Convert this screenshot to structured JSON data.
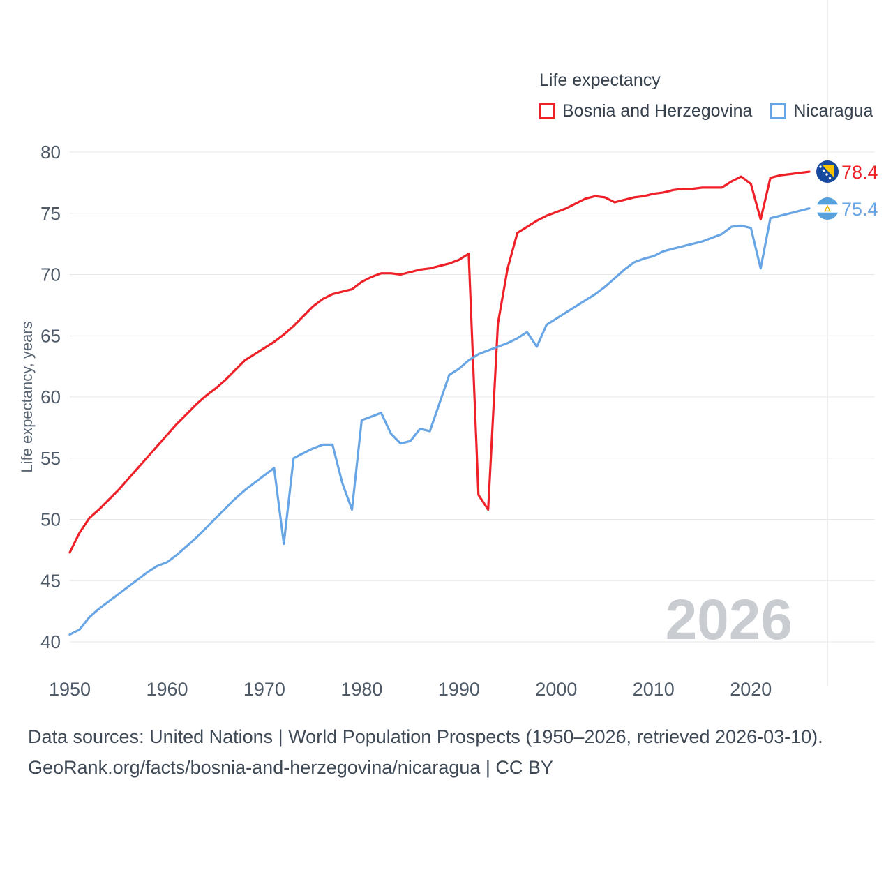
{
  "legend": {
    "title": "Life expectancy",
    "series": [
      {
        "label": "Bosnia and Herzegovina"
      },
      {
        "label": "Nicaragua"
      }
    ]
  },
  "chart_data": {
    "type": "line",
    "title": "Life expectancy",
    "ylabel": "Life expectancy, years",
    "xlim": [
      1950,
      2026
    ],
    "ylim": [
      40,
      80
    ],
    "x_start": 1950,
    "x_ticks": [
      1950,
      1960,
      1970,
      1980,
      1990,
      2000,
      2010,
      2020
    ],
    "y_ticks": [
      40,
      45,
      50,
      55,
      60,
      65,
      70,
      75,
      80
    ],
    "grid_color": "#e7e7e7",
    "watermark": "2026",
    "watermark_color": "#c9cdd2",
    "series": [
      {
        "name": "Bosnia and Herzegovina",
        "slug": "bosnia-and-herzegovina",
        "color": "#ee2128",
        "end_label": "78.4",
        "values": [
          47.3,
          48.9,
          50.1,
          50.8,
          51.6,
          52.4,
          53.3,
          54.2,
          55.1,
          56.0,
          56.9,
          57.8,
          58.6,
          59.4,
          60.1,
          60.7,
          61.4,
          62.2,
          63.0,
          63.5,
          64.0,
          64.5,
          65.1,
          65.8,
          66.6,
          67.4,
          68.0,
          68.4,
          68.6,
          68.8,
          69.4,
          69.8,
          70.1,
          70.1,
          70.0,
          70.2,
          70.4,
          70.5,
          70.7,
          70.9,
          71.2,
          71.7,
          52.0,
          50.8,
          66.0,
          70.5,
          73.4,
          73.9,
          74.4,
          74.8,
          75.1,
          75.4,
          75.8,
          76.2,
          76.4,
          76.3,
          75.9,
          76.1,
          76.3,
          76.4,
          76.6,
          76.7,
          76.9,
          77.0,
          77.0,
          77.1,
          77.1,
          77.1,
          77.6,
          78.0,
          77.4,
          74.5,
          77.9,
          78.1,
          78.2,
          78.3,
          78.4
        ]
      },
      {
        "name": "Nicaragua",
        "slug": "nicaragua",
        "color": "#67a5e5",
        "end_label": "75.4",
        "values": [
          40.6,
          41.0,
          42.0,
          42.7,
          43.3,
          43.9,
          44.5,
          45.1,
          45.7,
          46.2,
          46.5,
          47.1,
          47.8,
          48.5,
          49.3,
          50.1,
          50.9,
          51.7,
          52.4,
          53.0,
          53.6,
          54.2,
          48.0,
          55.0,
          55.4,
          55.8,
          56.1,
          56.1,
          53.0,
          50.8,
          58.1,
          58.4,
          58.7,
          57.0,
          56.2,
          56.4,
          57.4,
          57.2,
          59.5,
          61.8,
          62.3,
          63.0,
          63.5,
          63.8,
          64.1,
          64.4,
          64.8,
          65.3,
          64.1,
          65.9,
          66.4,
          66.9,
          67.4,
          67.9,
          68.4,
          69.0,
          69.7,
          70.4,
          71.0,
          71.3,
          71.5,
          71.9,
          72.1,
          72.3,
          72.5,
          72.7,
          73.0,
          73.3,
          73.9,
          74.0,
          73.8,
          70.5,
          74.6,
          74.8,
          75.0,
          75.2,
          75.4
        ]
      }
    ]
  },
  "footer": {
    "line1": "Data sources: United Nations | World Population Prospects (1950–2026, retrieved 2026-03-10).",
    "line2": "GeoRank.org/facts/bosnia-and-herzegovina/nicaragua | CC BY"
  }
}
